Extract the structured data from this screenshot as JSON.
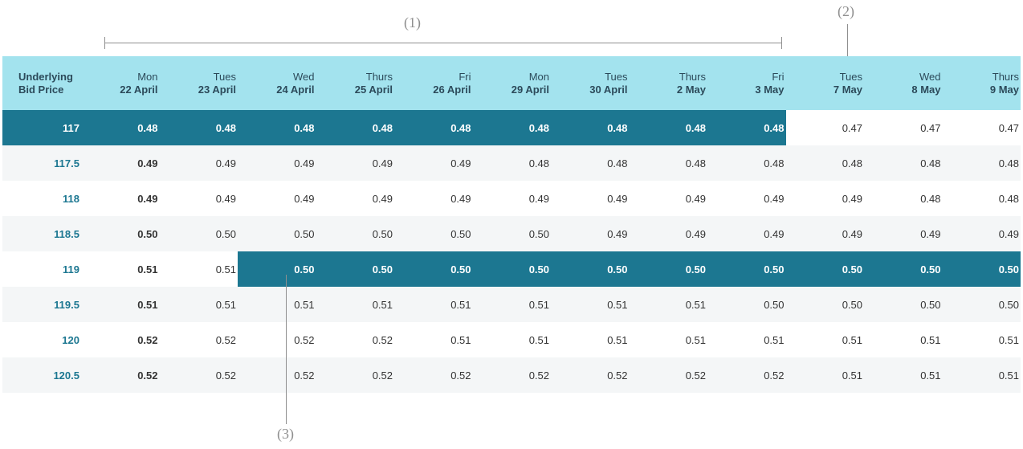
{
  "annotations": {
    "one": "(1)",
    "two": "(2)",
    "three": "(3)"
  },
  "header": {
    "corner_line1": "Underlying",
    "corner_line2": "Bid Price",
    "columns": [
      {
        "day": "Mon",
        "date": "22 April"
      },
      {
        "day": "Tues",
        "date": "23 April"
      },
      {
        "day": "Wed",
        "date": "24 April"
      },
      {
        "day": "Thurs",
        "date": "25 April"
      },
      {
        "day": "Fri",
        "date": "26 April"
      },
      {
        "day": "Mon",
        "date": "29 April"
      },
      {
        "day": "Tues",
        "date": "30 April"
      },
      {
        "day": "Thurs",
        "date": "2 May"
      },
      {
        "day": "Fri",
        "date": "3 May"
      },
      {
        "day": "Tues",
        "date": "7 May"
      },
      {
        "day": "Wed",
        "date": "8 May"
      },
      {
        "day": "Thurs",
        "date": "9 May"
      }
    ]
  },
  "rows": [
    {
      "price": "117",
      "values": [
        "0.48",
        "0.48",
        "0.48",
        "0.48",
        "0.48",
        "0.48",
        "0.48",
        "0.48",
        "0.48",
        "0.47",
        "0.47",
        "0.47"
      ]
    },
    {
      "price": "117.5",
      "values": [
        "0.49",
        "0.49",
        "0.49",
        "0.49",
        "0.49",
        "0.48",
        "0.48",
        "0.48",
        "0.48",
        "0.48",
        "0.48",
        "0.48"
      ]
    },
    {
      "price": "118",
      "values": [
        "0.49",
        "0.49",
        "0.49",
        "0.49",
        "0.49",
        "0.49",
        "0.49",
        "0.49",
        "0.49",
        "0.49",
        "0.48",
        "0.48"
      ]
    },
    {
      "price": "118.5",
      "values": [
        "0.50",
        "0.50",
        "0.50",
        "0.50",
        "0.50",
        "0.50",
        "0.49",
        "0.49",
        "0.49",
        "0.49",
        "0.49",
        "0.49"
      ]
    },
    {
      "price": "119",
      "values": [
        "0.51",
        "0.51",
        "0.50",
        "0.50",
        "0.50",
        "0.50",
        "0.50",
        "0.50",
        "0.50",
        "0.50",
        "0.50",
        "0.50"
      ]
    },
    {
      "price": "119.5",
      "values": [
        "0.51",
        "0.51",
        "0.51",
        "0.51",
        "0.51",
        "0.51",
        "0.51",
        "0.51",
        "0.50",
        "0.50",
        "0.50",
        "0.50"
      ]
    },
    {
      "price": "120",
      "values": [
        "0.52",
        "0.52",
        "0.52",
        "0.52",
        "0.51",
        "0.51",
        "0.51",
        "0.51",
        "0.51",
        "0.51",
        "0.51",
        "0.51"
      ]
    },
    {
      "price": "120.5",
      "values": [
        "0.52",
        "0.52",
        "0.52",
        "0.52",
        "0.52",
        "0.52",
        "0.52",
        "0.52",
        "0.52",
        "0.51",
        "0.51",
        "0.51"
      ]
    }
  ],
  "colors": {
    "header_bg": "#a3e3ee",
    "highlight": "#1c7791",
    "alt_row": "#f4f6f7",
    "price_text": "#1c7791"
  }
}
